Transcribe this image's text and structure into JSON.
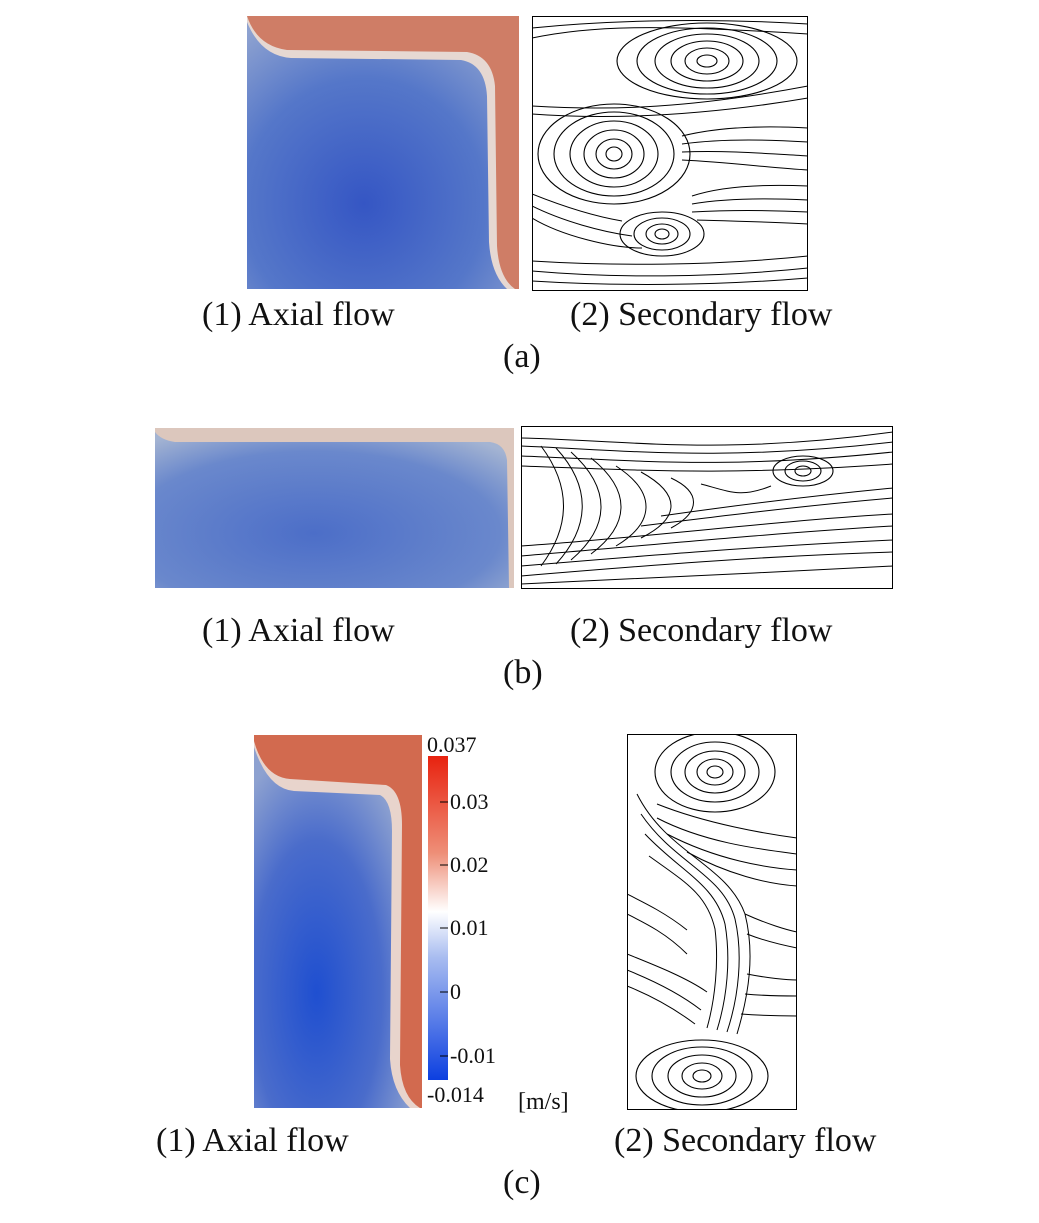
{
  "rows": [
    {
      "axial_label": "(1) Axial flow",
      "secondary_label": "(2) Secondary flow",
      "caption": "(a)"
    },
    {
      "axial_label": "(1) Axial flow",
      "secondary_label": "(2) Secondary flow",
      "caption": "(b)"
    },
    {
      "axial_label": "(1) Axial flow",
      "secondary_label": "(2) Secondary flow",
      "caption": "(c)"
    }
  ],
  "colorbar": {
    "ticks": [
      "0.037",
      "0.03",
      "0.02",
      "0.01",
      "0",
      "-0.01",
      "-0.014"
    ],
    "unit": "[m/s]",
    "top_color": "#e8220f",
    "mid_color": "#ffffff",
    "bottom_color": "#0c3fe0"
  },
  "colors": {
    "axial_low": "#3d5fc8",
    "axial_high": "#cf7a62",
    "streamline": "#000000"
  }
}
